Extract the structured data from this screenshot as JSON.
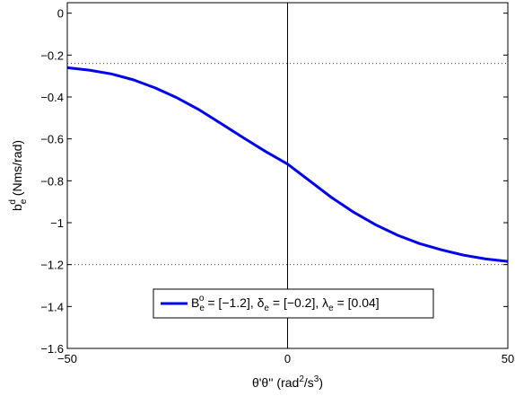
{
  "chart_data": {
    "type": "line",
    "xlabel": "θ'θ'' (rad²/s³)",
    "xlabel_parts": {
      "base": "θ'θ'' (rad",
      "sup1": "2",
      "mid": "/s",
      "sup2": "3",
      "end": ")"
    },
    "ylabel": "b_e^d (Nms/rad)",
    "ylabel_parts": {
      "b": "b",
      "sub": "e",
      "sup": "d",
      "rest": " (Nms/rad)"
    },
    "xlim": [
      -50,
      50
    ],
    "ylim": [
      -1.6,
      0.05
    ],
    "x_ticks": [
      -50,
      0,
      50
    ],
    "x_tick_labels": [
      "−50",
      "0",
      "50"
    ],
    "y_ticks": [
      0,
      -0.2,
      -0.4,
      -0.6,
      -0.8,
      -1,
      -1.2,
      -1.4,
      -1.6
    ],
    "y_tick_labels": [
      "0",
      "−0.2",
      "−0.4",
      "−0.6",
      "−0.8",
      "−1",
      "−1.2",
      "−1.4",
      "−1.6"
    ],
    "grid": false,
    "reference_lines": {
      "vertical_x": 0,
      "dotted_y": [
        -0.24,
        -1.2
      ]
    },
    "series": [
      {
        "name": "B_e^o = [−1.2], δ_e = [−0.2], λ_e = [0.04]",
        "color": "#0000ee",
        "x": [
          -50,
          -45,
          -40,
          -35,
          -30,
          -25,
          -20,
          -15,
          -10,
          -5,
          0,
          5,
          10,
          15,
          20,
          25,
          30,
          35,
          40,
          45,
          50
        ],
        "y": [
          -0.26,
          -0.272,
          -0.29,
          -0.318,
          -0.357,
          -0.405,
          -0.462,
          -0.528,
          -0.595,
          -0.66,
          -0.72,
          -0.8,
          -0.88,
          -0.95,
          -1.01,
          -1.06,
          -1.1,
          -1.13,
          -1.155,
          -1.173,
          -1.185
        ]
      }
    ],
    "legend": {
      "placement": "lower-center",
      "label_parts": [
        {
          "t": "B"
        },
        {
          "t": "e",
          "sub": true
        },
        {
          "t": "o",
          "sup": true
        },
        {
          "t": " = [−1.2], δ"
        },
        {
          "t": "e",
          "sub": true
        },
        {
          "t": " = [−0.2], λ"
        },
        {
          "t": "e",
          "sub": true
        },
        {
          "t": " = [0.04]"
        }
      ]
    }
  }
}
